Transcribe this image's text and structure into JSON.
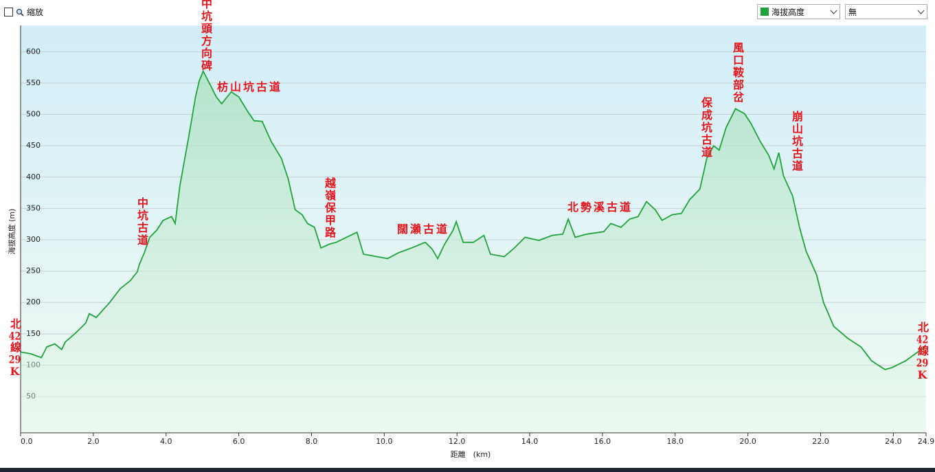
{
  "ui": {
    "zoom_label": "縮放",
    "display_select": "無"
  },
  "chart_data": {
    "type": "area",
    "xlabel": "距離　(km)",
    "ylabel": "海拔高度 (m)",
    "grid": true,
    "xlim": [
      0,
      24.9
    ],
    "ylim": [
      -8,
      642
    ],
    "xticks": [
      {
        "value": 0,
        "label": "0.0"
      },
      {
        "value": 2,
        "label": "2.0"
      },
      {
        "value": 4,
        "label": "4.0"
      },
      {
        "value": 6,
        "label": "6.0"
      },
      {
        "value": 8,
        "label": "8.0"
      },
      {
        "value": 10,
        "label": "10.0"
      },
      {
        "value": 12,
        "label": "12.0"
      },
      {
        "value": 14,
        "label": "14.0"
      },
      {
        "value": 16,
        "label": "16.0"
      },
      {
        "value": 18,
        "label": "18.0"
      },
      {
        "value": 20,
        "label": "20.0"
      },
      {
        "value": 22,
        "label": "22.0"
      },
      {
        "value": 24,
        "label": "24.0"
      },
      24.9
    ],
    "yticks": [
      50,
      100,
      150,
      200,
      250,
      300,
      350,
      400,
      450,
      500,
      550,
      600
    ],
    "x": [
      0,
      0.28,
      0.57,
      0.72,
      0.94,
      1.13,
      1.23,
      1.51,
      1.79,
      1.89,
      2.08,
      2.45,
      2.74,
      3.02,
      3.21,
      3.26,
      3.4,
      3.55,
      3.74,
      3.92,
      4.15,
      4.25,
      4.38,
      4.62,
      4.81,
      4.91,
      5.02,
      5.19,
      5.38,
      5.53,
      5.79,
      6.0,
      6.23,
      6.42,
      6.64,
      6.89,
      7.17,
      7.36,
      7.55,
      7.74,
      7.89,
      8.08,
      8.26,
      8.49,
      8.68,
      8.96,
      9.25,
      9.43,
      9.72,
      10.09,
      10.38,
      10.75,
      11.13,
      11.32,
      11.47,
      11.66,
      11.89,
      11.98,
      12.17,
      12.45,
      12.74,
      12.92,
      13.3,
      13.58,
      13.87,
      14.25,
      14.62,
      14.91,
      15.06,
      15.25,
      15.57,
      16.04,
      16.23,
      16.51,
      16.75,
      16.98,
      17.21,
      17.45,
      17.64,
      17.92,
      18.17,
      18.4,
      18.68,
      18.87,
      19.06,
      19.21,
      19.4,
      19.66,
      19.91,
      20.09,
      20.34,
      20.57,
      20.72,
      20.85,
      20.98,
      21.23,
      21.42,
      21.6,
      21.89,
      22.08,
      22.36,
      22.74,
      23.11,
      23.4,
      23.77,
      23.96,
      24.34,
      24.72,
      24.87
    ],
    "series": [
      {
        "name": "海拔高度",
        "color": "#1fa33a",
        "values": [
          121,
          118,
          112,
          129,
          134,
          125,
          137,
          151,
          167,
          182,
          176,
          200,
          222,
          235,
          249,
          260,
          279,
          304,
          315,
          331,
          337,
          326,
          386,
          463,
          528,
          553,
          569,
          550,
          528,
          517,
          536,
          528,
          506,
          490,
          489,
          457,
          430,
          397,
          348,
          340,
          326,
          320,
          287,
          293,
          296,
          304,
          312,
          277,
          274,
          270,
          279,
          287,
          296,
          285,
          270,
          293,
          315,
          329,
          296,
          296,
          307,
          277,
          273,
          287,
          304,
          299,
          307,
          309,
          333,
          304,
          309,
          313,
          326,
          320,
          333,
          337,
          361,
          348,
          331,
          340,
          342,
          364,
          381,
          430,
          450,
          443,
          479,
          509,
          501,
          485,
          457,
          435,
          413,
          439,
          402,
          370,
          320,
          282,
          244,
          200,
          162,
          143,
          129,
          107,
          93,
          96,
          107,
          123,
          129
        ]
      }
    ],
    "annotations": [
      "北42線29K",
      "中坑古道",
      "中坑頭方向碑",
      "枋山坑古道",
      "越嶺保甲路",
      "闊瀨古道",
      "北勢溪古道",
      "保成坑古道",
      "風口鞍部岔",
      "崩山坑古道",
      "北42線29K"
    ]
  }
}
